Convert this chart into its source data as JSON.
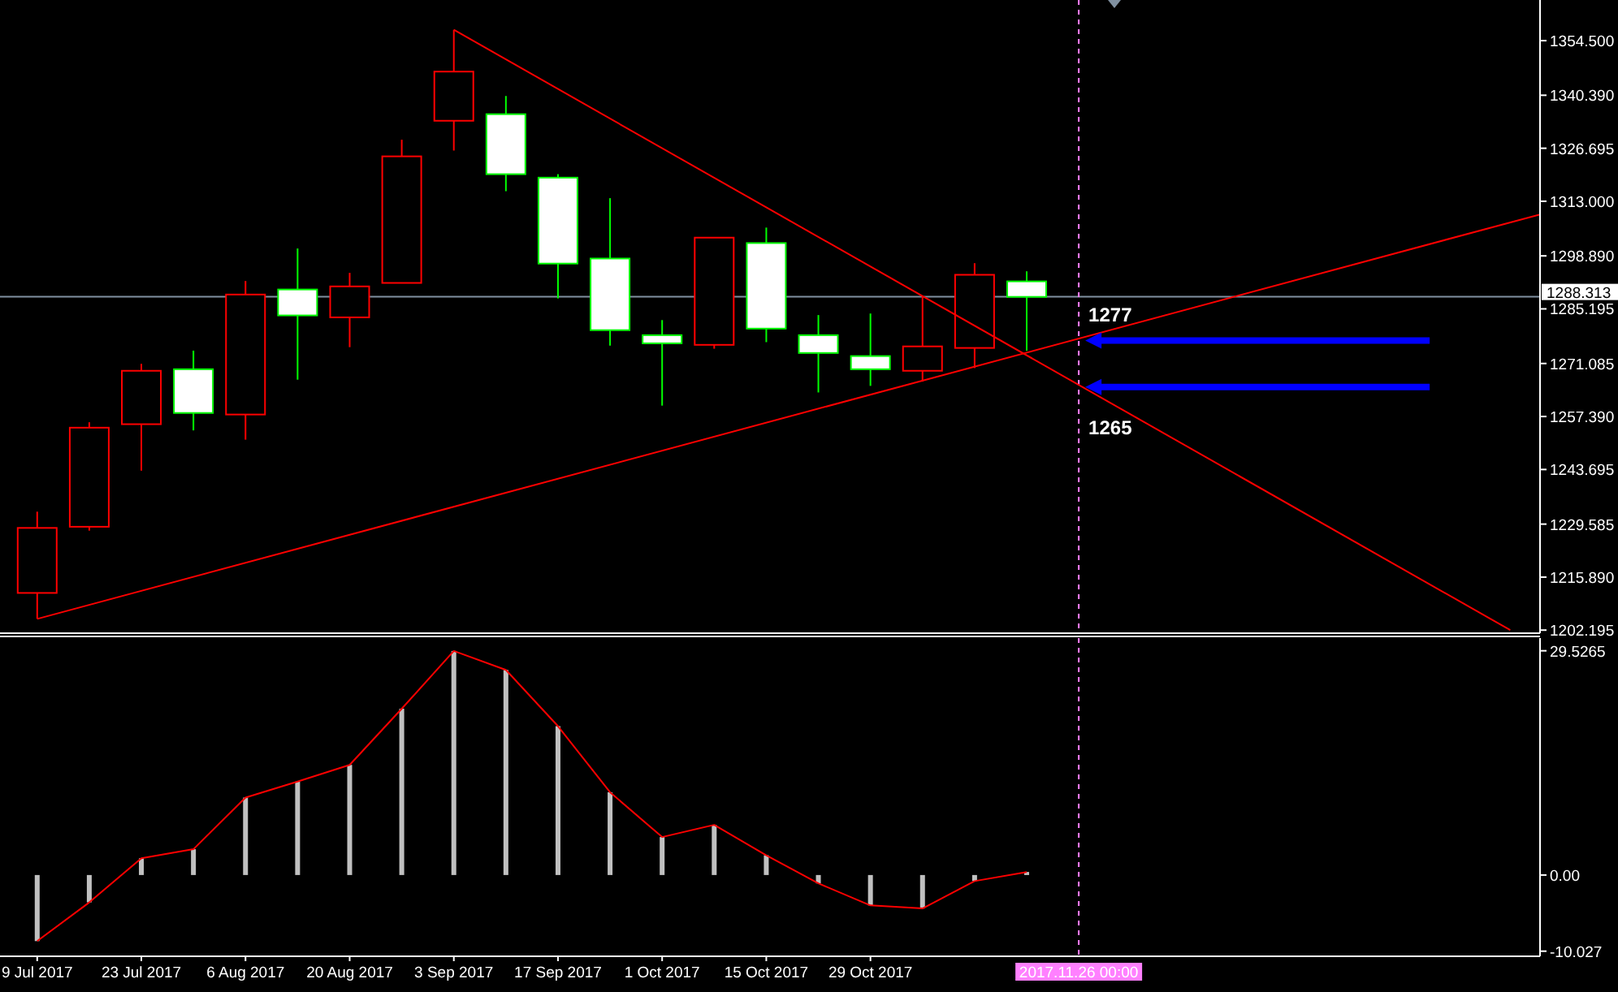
{
  "chart_data": [
    {
      "type": "candlestick",
      "x": [
        "2017-07-09",
        "2017-07-16",
        "2017-07-23",
        "2017-07-30",
        "2017-08-06",
        "2017-08-13",
        "2017-08-20",
        "2017-08-27",
        "2017-09-03",
        "2017-09-10",
        "2017-09-17",
        "2017-09-24",
        "2017-10-01",
        "2017-10-08",
        "2017-10-15",
        "2017-10-22",
        "2017-10-29",
        "2017-11-05",
        "2017-11-12",
        "2017-11-19"
      ],
      "ohlc": [
        [
          1211.8,
          1232.8,
          1205.1,
          1228.6
        ],
        [
          1228.9,
          1255.9,
          1227.9,
          1254.5
        ],
        [
          1255.4,
          1271.0,
          1243.4,
          1269.2
        ],
        [
          1269.6,
          1274.4,
          1253.8,
          1258.3
        ],
        [
          1257.9,
          1292.4,
          1251.4,
          1288.9
        ],
        [
          1290.2,
          1300.8,
          1266.9,
          1283.5
        ],
        [
          1283.0,
          1294.5,
          1275.3,
          1291.0
        ],
        [
          1291.9,
          1328.9,
          1291.9,
          1324.6
        ],
        [
          1333.8,
          1357.3,
          1326.1,
          1346.5
        ],
        [
          1335.5,
          1340.2,
          1315.6,
          1320.0
        ],
        [
          1319.1,
          1320.0,
          1287.9,
          1296.9
        ],
        [
          1298.2,
          1313.8,
          1275.7,
          1279.7
        ],
        [
          1278.4,
          1282.3,
          1260.2,
          1276.3
        ],
        [
          1275.9,
          1303.6,
          1274.9,
          1303.6
        ],
        [
          1302.2,
          1306.2,
          1276.6,
          1280.1
        ],
        [
          1278.4,
          1283.6,
          1263.6,
          1273.8
        ],
        [
          1273.0,
          1284.0,
          1265.3,
          1269.6
        ],
        [
          1269.2,
          1288.5,
          1266.4,
          1275.5
        ],
        [
          1275.1,
          1297.0,
          1269.9,
          1294.0
        ],
        [
          1292.3,
          1294.9,
          1274.4,
          1288.3
        ]
      ],
      "colors": [
        "#ff0000",
        "#ff0000",
        "#ff0000",
        "#00ff00",
        "#ff0000",
        "#00ff00",
        "#ff0000",
        "#ff0000",
        "#ff0000",
        "#00ff00",
        "#00ff00",
        "#00ff00",
        "#00ff00",
        "#ff0000",
        "#00ff00",
        "#00ff00",
        "#00ff00",
        "#ff0000",
        "#ff0000",
        "#00ff00"
      ],
      "series": [
        {
          "type": "line",
          "color": "#ff0000",
          "x": [
            "2017-09-03",
            "2018-01-23"
          ],
          "values": [
            1357.3,
            1202.2
          ]
        },
        {
          "type": "line",
          "color": "#ff0000",
          "x": [
            "2017-07-09",
            "2018-01-27"
          ],
          "values": [
            1205.1,
            1309.6
          ]
        }
      ],
      "xlim": [
        "2017-07-04",
        "2018-01-27"
      ],
      "ylim": [
        1201.4,
        1365.0
      ],
      "yticks": [
        {
          "value": 1354.5,
          "label": "1354.500"
        },
        {
          "value": 1340.39,
          "label": "1340.390"
        },
        1326.695,
        {
          "value": 1313,
          "label": "1313.000"
        },
        {
          "value": 1298.89,
          "label": "1298.890"
        },
        1285.195,
        1271.085,
        {
          "value": 1257.39,
          "label": "1257.390"
        },
        1243.695,
        1229.585,
        {
          "value": 1215.89,
          "label": "1215.890"
        },
        1202.195
      ],
      "tick_labels": "y",
      "ref_lines": [
        {
          "axis": "y",
          "value": 1288.313,
          "label": "1288.313",
          "color": "#8090a0"
        },
        {
          "axis": "x",
          "value": "2017-11-26",
          "color": "#ff80ff",
          "line_style": "dashed"
        }
      ],
      "annotations": [
        {
          "text": "1277",
          "x": "2017-11-26",
          "y": 1277
        },
        {
          "text": "1265",
          "x": "2017-11-26",
          "y": 1265
        }
      ]
    },
    {
      "type": "bar",
      "x": [
        "2017-07-09",
        "2017-07-16",
        "2017-07-23",
        "2017-07-30",
        "2017-08-06",
        "2017-08-13",
        "2017-08-20",
        "2017-08-27",
        "2017-09-03",
        "2017-09-10",
        "2017-09-17",
        "2017-09-24",
        "2017-10-01",
        "2017-10-08",
        "2017-10-15",
        "2017-10-22",
        "2017-10-29",
        "2017-11-05",
        "2017-11-12",
        "2017-11-19"
      ],
      "series": [
        {
          "type": "bar",
          "color": "#c0c0c0",
          "values": [
            -8.7,
            -3.6,
            2.2,
            3.4,
            10.2,
            12.3,
            14.5,
            21.9,
            29.5,
            27.0,
            19.6,
            10.9,
            5.0,
            6.6,
            2.6,
            -1.1,
            -4.0,
            -4.4,
            -0.8,
            0.4
          ]
        },
        {
          "type": "line",
          "color": "#ff0000",
          "values": [
            -8.7,
            -3.6,
            2.2,
            3.4,
            10.2,
            12.3,
            14.5,
            21.9,
            29.5,
            27.0,
            19.6,
            10.9,
            5.0,
            6.6,
            2.6,
            -1.1,
            -4.0,
            -4.4,
            -0.8,
            0.4
          ]
        }
      ],
      "xlim": [
        "2017-07-04",
        "2018-01-27"
      ],
      "ylim": [
        -10.7,
        31.2
      ],
      "yticks": [
        29.5265,
        {
          "value": 0,
          "label": "0.00"
        },
        -10.027
      ],
      "xticks": [
        {
          "value": "2017-07-09",
          "label": "9 Jul 2017"
        },
        {
          "value": "2017-07-23",
          "label": "23 Jul 2017"
        },
        {
          "value": "2017-08-06",
          "label": "6 Aug 2017"
        },
        {
          "value": "2017-08-20",
          "label": "20 Aug 2017"
        },
        {
          "value": "2017-09-03",
          "label": "3 Sep 2017"
        },
        {
          "value": "2017-09-17",
          "label": "17 Sep 2017"
        },
        {
          "value": "2017-10-01",
          "label": "1 Oct 2017"
        },
        {
          "value": "2017-10-15",
          "label": "15 Oct 2017"
        },
        {
          "value": "2017-10-29",
          "label": "29 Oct 2017"
        }
      ],
      "ref_lines": [
        {
          "axis": "x",
          "value": "2017-11-26",
          "label": "2017.11.26 00:00",
          "color": "#ff80ff",
          "line_style": "dashed"
        }
      ]
    }
  ]
}
